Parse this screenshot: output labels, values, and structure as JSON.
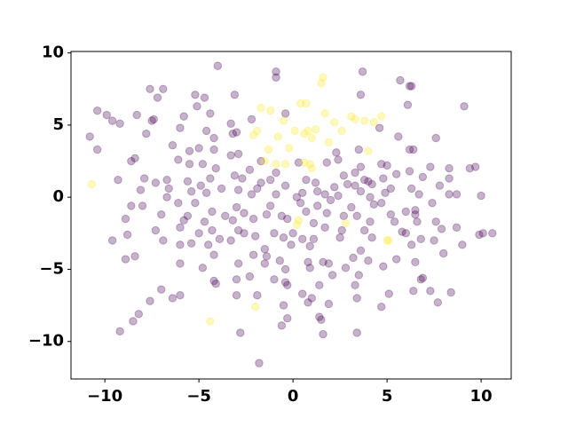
{
  "chart_data": {
    "type": "scatter",
    "xlim": [
      -11.8,
      11.6
    ],
    "ylim": [
      -12.6,
      10.1
    ],
    "xticks": [
      {
        "value": -10,
        "label": "−10"
      },
      {
        "value": -5,
        "label": "−5"
      },
      0,
      5,
      10
    ],
    "yticks": [
      {
        "value": -10,
        "label": "−10"
      },
      {
        "value": -5,
        "label": "−5"
      },
      0,
      5,
      10
    ],
    "opacity": 0.3,
    "series": [
      {
        "color": "#440154",
        "x": [
          -4.0,
          -0.9,
          -0.9,
          3.7,
          5.7,
          6.3,
          6.2,
          -7.6,
          -6.9,
          -7.2,
          -5.2,
          -4.7,
          -3.1,
          3.6,
          6.1,
          9.1,
          -10.4,
          -9.9,
          -9.6,
          -9.2,
          -8.3,
          -7.4,
          -7.5,
          -5.8,
          -5.1,
          -4.4,
          -3.3,
          -2.2,
          4.6,
          5.6,
          -7.8,
          -6.0,
          -4.6,
          -4.2,
          -3.2,
          -3.0,
          -0.4,
          7.6,
          -10.8,
          -6.4,
          -5.5,
          -5.0,
          -4.2,
          -3.3,
          -2.9,
          -1.7,
          2.3,
          2.4,
          3.5,
          5.0,
          4.7,
          6.2,
          6.4,
          7.3,
          8.3,
          9.4,
          9.7,
          -10.4,
          -8.6,
          -8.4,
          -6.1,
          -5.5,
          -4.8,
          -4.1,
          -2.3,
          -0.9,
          0.3,
          1.8,
          2.7,
          3.3,
          3.6,
          3.3,
          4.0,
          4.8,
          5.5,
          6.2,
          6.9,
          8.3,
          -9.3,
          -7.9,
          -7.3,
          -6.7,
          -5.6,
          -4.4,
          -3.1,
          -2.7,
          -1.7,
          -1.2,
          -0.4,
          0.7,
          1.2,
          2.2,
          2.9,
          3.8,
          4.2,
          5.2,
          6.3,
          7.8,
          -8.1,
          -6.6,
          -5.4,
          -4.9,
          -3.8,
          -2.9,
          -1.9,
          -0.9,
          0.5,
          1.3,
          2.4,
          3.6,
          4.9,
          6.7,
          8.3,
          -6.7,
          -4.6,
          -2.2,
          0.2,
          1.7,
          4.1,
          8.7,
          10.0,
          -8.6,
          -8.0,
          -6.1,
          -5.2,
          -3.0,
          -1.2,
          0.4,
          1.3,
          2.0,
          3.1,
          4.3,
          4.7,
          6.5,
          7.4,
          -7.0,
          -5.6,
          -4.3,
          -3.6,
          -2.6,
          -1.4,
          -0.6,
          0.7,
          1.8,
          2.7,
          3.4,
          5.2,
          6.0,
          6.5,
          -8.9,
          -5.8,
          -4.7,
          -3.2,
          -2.1,
          -0.3,
          1.1,
          2.6,
          4.1,
          5.4,
          6.6,
          7.6,
          -7.3,
          -6.0,
          -4.3,
          -2.9,
          -1.0,
          0.0,
          1.7,
          3.8,
          5.8,
          7.9,
          -8.8,
          -5.0,
          -3.9,
          -2.6,
          -2.0,
          -0.5,
          0.5,
          1.1,
          2.5,
          4.2,
          6.0,
          6.8,
          7.5,
          8.7,
          9.9,
          10.1,
          10.6,
          -9.6,
          -6.9,
          -5.4,
          -4.5,
          -3.3,
          -1.5,
          -0.1,
          0.9,
          3.6,
          6.3,
          9.0,
          -8.9,
          -8.4,
          -6.0,
          -4.2,
          -2.1,
          -1.4,
          -0.7,
          0.8,
          1.6,
          1.9,
          3.2,
          4.0,
          5.5,
          6.5,
          8.0,
          -6.0,
          -4.8,
          -2.9,
          -1.5,
          -0.4,
          0.9,
          2.8,
          4.8,
          -4.2,
          -3.0,
          -2.3,
          -1.0,
          -0.4,
          2.1,
          3.5,
          6.9,
          -4.1,
          -0.3,
          1.4,
          3.3,
          5.1,
          6.4,
          6.8,
          -7.0,
          -6.0,
          -6.4,
          -3.0,
          -1.9,
          0.5,
          1.0,
          3.4,
          7.3,
          8.4,
          -7.6,
          -8.2,
          -8.5,
          -0.5,
          0.8,
          1.9,
          4.7,
          7.7,
          -9.2,
          -2.8,
          -0.6,
          -0.3,
          1.4,
          1.5,
          3.4,
          1.6,
          -1.8
        ],
        "values": [
          9.1,
          8.7,
          8.3,
          8.7,
          8.1,
          7.7,
          7.7,
          7.5,
          7.5,
          6.9,
          7.1,
          6.9,
          7.1,
          7.1,
          6.4,
          6.3,
          6.0,
          5.7,
          5.3,
          5.1,
          5.7,
          5.4,
          5.3,
          5.6,
          6.3,
          5.8,
          5.1,
          5.4,
          4.8,
          4.2,
          4.4,
          4.8,
          4.6,
          4.1,
          4.4,
          4.5,
          5.8,
          4.1,
          4.2,
          3.6,
          3.2,
          3.4,
          3.3,
          2.9,
          3.0,
          2.5,
          3.1,
          2.6,
          3.3,
          2.2,
          2.3,
          3.3,
          3.3,
          2.1,
          2.0,
          2.0,
          2.1,
          3.3,
          2.5,
          2.7,
          2.6,
          2.3,
          2.3,
          2.0,
          1.9,
          1.7,
          2.4,
          2.4,
          1.5,
          1.7,
          2.1,
          0.8,
          1.1,
          1.3,
          1.6,
          1.8,
          1.4,
          1.3,
          1.2,
          1.3,
          1.0,
          1.2,
          1.1,
          1.3,
          1.5,
          1.3,
          1.0,
          1.2,
          0.8,
          1.2,
          1.0,
          0.7,
          0.9,
          1.2,
          0.9,
          0.6,
          0.6,
          0.8,
          0.5,
          0.6,
          0.4,
          0.8,
          0.6,
          0.5,
          0.6,
          0.2,
          0.3,
          0.4,
          0.1,
          0.4,
          0.3,
          0.2,
          0.2,
          0.0,
          0.3,
          0.2,
          0.0,
          0.2,
          0.0,
          0.2,
          0.1,
          -0.6,
          -0.6,
          -0.4,
          -0.4,
          -0.7,
          -0.6,
          -0.4,
          -0.6,
          -0.2,
          -0.7,
          -0.5,
          -0.4,
          -0.9,
          -0.4,
          -1.2,
          -1.3,
          -1.0,
          -1.3,
          -1.1,
          -1.2,
          -1.3,
          -1.0,
          -1.1,
          -1.3,
          -1.3,
          -1.2,
          -1.0,
          -1.2,
          -1.5,
          -1.6,
          -1.7,
          -1.6,
          -1.5,
          -1.5,
          -1.8,
          -2.3,
          -1.7,
          -1.7,
          -1.7,
          -1.7,
          -2.3,
          -2.1,
          -2.3,
          -2.3,
          -2.5,
          -2.5,
          -2.1,
          -2.3,
          -2.4,
          -2.2,
          -2.6,
          -2.5,
          -2.9,
          -2.5,
          -2.7,
          -2.8,
          -2.9,
          -2.9,
          -2.8,
          -2.8,
          -2.5,
          -2.9,
          -3.0,
          -2.1,
          -2.6,
          -2.5,
          -2.5,
          -3.0,
          -3.0,
          -3.2,
          -3.3,
          -3.0,
          -3.6,
          -3.3,
          -3.4,
          -3.7,
          -3.3,
          -3.3,
          -4.3,
          -4.1,
          -3.3,
          -4.0,
          -4.0,
          -4.1,
          -4.4,
          -4.5,
          -4.5,
          -4.6,
          -4.2,
          -4.4,
          -4.3,
          -4.5,
          -3.9,
          -4.6,
          -4.9,
          -4.6,
          -4.6,
          -5.0,
          -4.9,
          -4.9,
          -4.8,
          -5.8,
          -5.7,
          -5.5,
          -5.7,
          -5.9,
          -5.4,
          -5.4,
          -5.6,
          -6.0,
          -6.1,
          -6.1,
          -6.1,
          -6.7,
          -6.5,
          -5.7,
          -6.4,
          -6.8,
          -7.0,
          -6.8,
          -6.8,
          -6.7,
          -7.0,
          -7.0,
          -6.5,
          -6.6,
          -7.2,
          -8.1,
          -8.6,
          -7.5,
          -7.3,
          -7.4,
          -7.6,
          -7.3,
          -9.3,
          -9.4,
          -8.9,
          -8.4,
          -8.3,
          -8.5,
          -9.4,
          -9.5,
          -11.5
        ]
      },
      {
        "color": "#fde725",
        "x": [
          -10.7,
          -4.4,
          -2.0,
          -1.7,
          -1.2,
          -2.1,
          -1.9,
          -1.3,
          -1.5,
          -0.9,
          -0.4,
          -0.2,
          -0.8,
          -0.5,
          0.1,
          0.6,
          0.8,
          1.2,
          1.0,
          0.4,
          0.7,
          1.6,
          1.5,
          1.7,
          2.2,
          2.6,
          1.9,
          3.1,
          3.3,
          3.8,
          4.3,
          4.7,
          4.0,
          0.6,
          0.9,
          1.0,
          0.3,
          0.2,
          2.8,
          5.0,
          5.1
        ],
        "values": [
          0.9,
          -8.6,
          -7.6,
          6.2,
          6.0,
          4.3,
          4.6,
          3.3,
          2.5,
          2.3,
          2.3,
          3.4,
          4.2,
          5.3,
          4.6,
          4.4,
          4.6,
          4.7,
          4.1,
          6.5,
          6.5,
          8.3,
          7.9,
          5.8,
          5.2,
          4.6,
          3.8,
          5.6,
          5.4,
          5.3,
          5.2,
          5.6,
          3.2,
          2.4,
          2.3,
          2.0,
          -1.6,
          -1.9,
          -1.8,
          -3.0,
          -3.0
        ]
      }
    ]
  }
}
